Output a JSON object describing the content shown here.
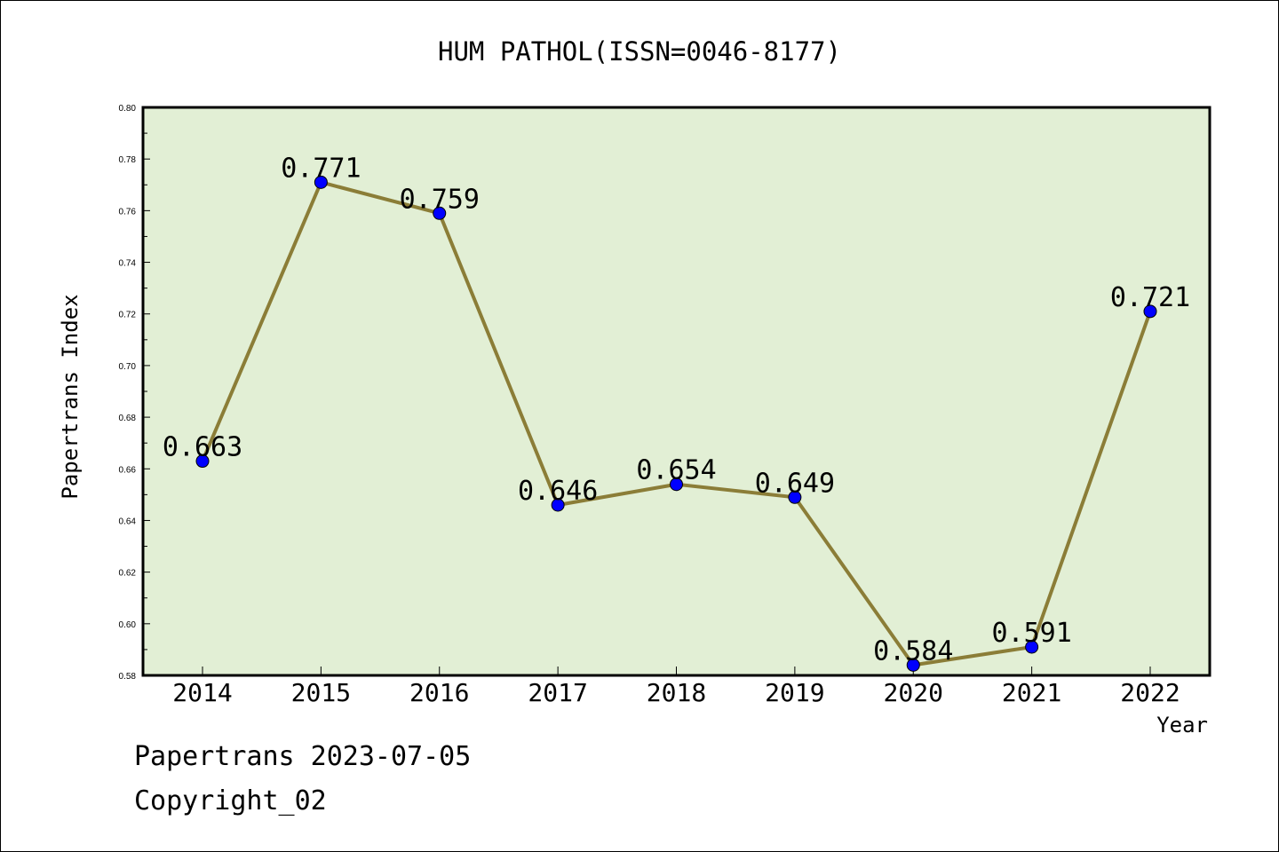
{
  "chart_data": {
    "type": "line",
    "title": "HUM PATHOL(ISSN=0046-8177)",
    "xlabel": "Year",
    "ylabel": "Papertrans Index",
    "categories": [
      "2014",
      "2015",
      "2016",
      "2017",
      "2018",
      "2019",
      "2020",
      "2021",
      "2022"
    ],
    "series": [
      {
        "values": [
          0.663,
          0.771,
          0.759,
          0.646,
          0.654,
          0.649,
          0.584,
          0.591,
          0.721
        ],
        "labels": [
          "0.663",
          "0.771",
          "0.759",
          "0.646",
          "0.654",
          "0.649",
          "0.584",
          "0.591",
          "0.721"
        ]
      }
    ],
    "ylim": [
      0.58,
      0.8
    ],
    "yticks": [
      "0.58",
      "0.60",
      "0.62",
      "0.64",
      "0.66",
      "0.68",
      "0.70",
      "0.72",
      "0.74",
      "0.76",
      "0.78",
      "0.80"
    ],
    "grid": false,
    "colors": {
      "plot_background": "#e2efd5",
      "line": "#8b7d37",
      "marker": "#0000ff"
    }
  },
  "footer": {
    "source": "Papertrans 2023-07-05",
    "copyright": "Copyright_02"
  }
}
